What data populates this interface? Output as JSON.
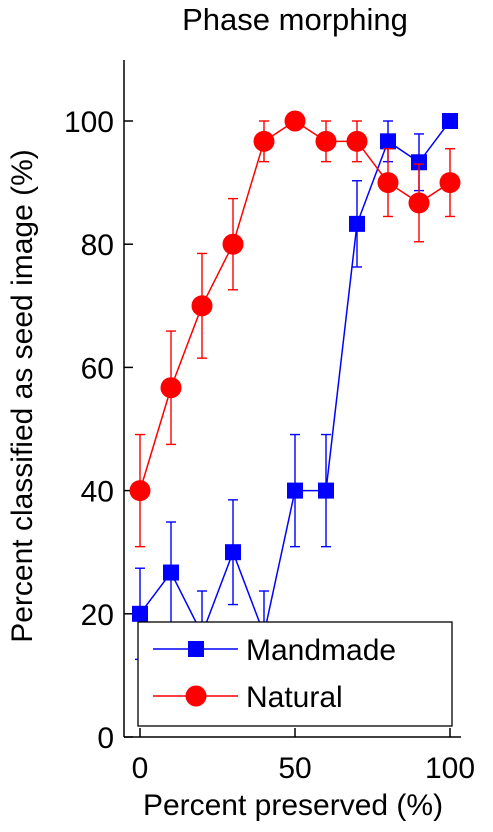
{
  "chart_data": {
    "type": "line",
    "title": "Phase morphing",
    "xlabel": "Percent preserved (%)",
    "ylabel": "Percent classified as seed image (%)",
    "xlim": [
      -3,
      103
    ],
    "ylim": [
      0,
      110
    ],
    "xticks": [
      0,
      50,
      100
    ],
    "yticks": [
      0,
      20,
      40,
      60,
      80,
      100
    ],
    "grid": false,
    "legend_position": "bottom-right",
    "series": [
      {
        "name": "Mandmade",
        "color": "#0000ff",
        "marker": "square",
        "x": [
          0,
          10,
          20,
          30,
          40,
          50,
          60,
          70,
          80,
          90,
          100
        ],
        "y": [
          20,
          26.7,
          16.7,
          30,
          16.7,
          40,
          40,
          83.3,
          96.7,
          93.3,
          100
        ],
        "err": [
          7.4,
          8.2,
          7,
          8.5,
          7,
          9.1,
          9.1,
          7,
          3.3,
          4.6,
          0
        ]
      },
      {
        "name": "Natural",
        "color": "#ff0000",
        "marker": "circle",
        "x": [
          0,
          10,
          20,
          30,
          40,
          50,
          60,
          70,
          80,
          90,
          100
        ],
        "y": [
          40,
          56.7,
          70,
          80,
          96.7,
          100,
          96.7,
          96.7,
          90,
          86.7,
          90
        ],
        "err": [
          9.1,
          9.2,
          8.5,
          7.4,
          3.3,
          0,
          3.3,
          3.3,
          5.5,
          6.3,
          5.5
        ]
      }
    ]
  }
}
